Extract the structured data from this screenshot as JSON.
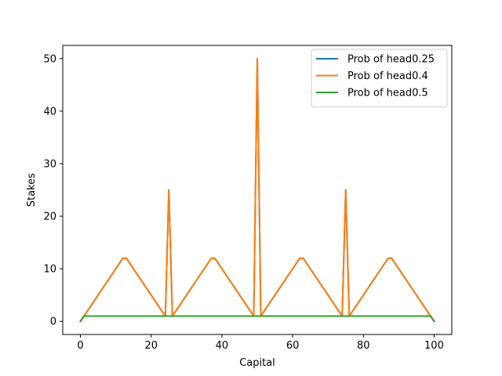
{
  "chart_data": {
    "type": "line",
    "title": "",
    "xlabel": "Capital",
    "ylabel": "Stakes",
    "xlim": [
      -5,
      105
    ],
    "ylim": [
      -2.5,
      52.5
    ],
    "xticks": [
      "0",
      "20",
      "40",
      "60",
      "80",
      "100"
    ],
    "yticks": [
      "0",
      "10",
      "20",
      "30",
      "40",
      "50"
    ],
    "grid": false,
    "legend_position": "top-right",
    "series": [
      {
        "name": "Prob of head0.25",
        "color": "#1f77b4",
        "x": [
          0,
          1,
          12,
          13,
          24,
          25,
          26,
          37,
          38,
          49,
          50,
          51,
          62,
          63,
          74,
          75,
          76,
          87,
          88,
          99,
          100
        ],
        "y": [
          0,
          1,
          12,
          12,
          1,
          25,
          1,
          12,
          12,
          1,
          50,
          1,
          12,
          12,
          1,
          25,
          1,
          12,
          12,
          1,
          0
        ]
      },
      {
        "name": "Prob of head0.4",
        "color": "#ff7f0e",
        "x": [
          0,
          1,
          12,
          13,
          24,
          25,
          26,
          37,
          38,
          49,
          50,
          51,
          62,
          63,
          74,
          75,
          76,
          87,
          88,
          99,
          100
        ],
        "y": [
          0,
          1,
          12,
          12,
          1,
          25,
          1,
          12,
          12,
          1,
          50,
          1,
          12,
          12,
          1,
          25,
          1,
          12,
          12,
          1,
          0
        ]
      },
      {
        "name": "Prob of head0.5",
        "color": "#2ca02c",
        "x": [
          0,
          1,
          99,
          100
        ],
        "y": [
          0,
          1,
          1,
          0
        ]
      }
    ]
  }
}
